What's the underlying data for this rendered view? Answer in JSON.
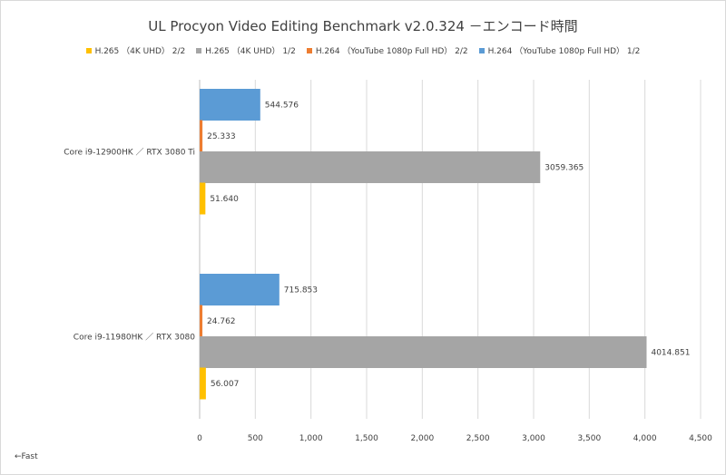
{
  "chart_data": {
    "type": "bar",
    "orientation": "horizontal",
    "title": "UL Procyon Video Editing Benchmark v2.0.324 －エンコード時間",
    "categories": [
      "Core i9-12900HK ／ RTX 3080 Ti",
      "Core i9-11980HK ／ RTX 3080"
    ],
    "series": [
      {
        "name": "H.264 （YouTube 1080p Full HD） 1/2",
        "color": "#5B9BD5",
        "values": [
          544.576,
          715.853
        ],
        "labels": [
          "544.576",
          "715.853"
        ]
      },
      {
        "name": "H.264 （YouTube 1080p Full HD） 2/2",
        "color": "#ED7D31",
        "values": [
          25.333,
          24.762
        ],
        "labels": [
          "25.333",
          "24.762"
        ]
      },
      {
        "name": "H.265 （4K UHD） 1/2",
        "color": "#A5A5A5",
        "values": [
          3059.365,
          4014.851
        ],
        "labels": [
          "3059.365",
          "4014.851"
        ]
      },
      {
        "name": "H.265 （4K UHD） 2/2",
        "color": "#FFC000",
        "values": [
          51.64,
          56.007
        ],
        "labels": [
          "51.640",
          "56.007"
        ]
      }
    ],
    "legend_order": [
      3,
      2,
      1,
      0
    ],
    "xlim": [
      0,
      4500
    ],
    "xticks": [
      0,
      500,
      1000,
      1500,
      2000,
      2500,
      3000,
      3500,
      4000,
      4500
    ],
    "xtick_labels": [
      "0",
      "500",
      "1,000",
      "1,500",
      "2,000",
      "2,500",
      "3,000",
      "3,500",
      "4,000",
      "4,500"
    ],
    "grid": "vertical",
    "legend_position": "top",
    "note": "←Fast"
  }
}
